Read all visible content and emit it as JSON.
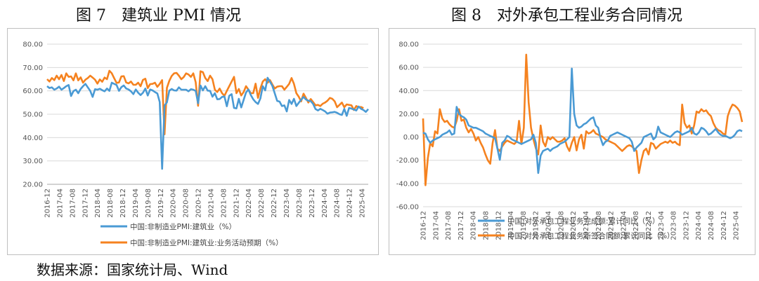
{
  "figure1_title": "图 7　建筑业 PMI 情况",
  "figure2_title": "图 8　对外承包工程业务合同情况",
  "source_note": "数据来源：国家统计局、Wind",
  "colors": {
    "blue": "#4a9ad4",
    "orange": "#f5821f",
    "grid": "#d9d9d9",
    "axis": "#a6a6a6"
  },
  "chart_data": [
    {
      "type": "line",
      "ylim": [
        20,
        80
      ],
      "y_ticks": [
        "20.00",
        "30.00",
        "40.00",
        "50.00",
        "60.00",
        "70.00",
        "80.00"
      ],
      "x_start": "2016-12",
      "x_tick_labels": [
        "2016-12",
        "2017-04",
        "2017-08",
        "2017-12",
        "2018-04",
        "2018-08",
        "2018-12",
        "2019-04",
        "2019-08",
        "2019-12",
        "2020-04",
        "2020-08",
        "2020-12",
        "2021-04",
        "2021-08",
        "2021-12",
        "2022-04",
        "2022-08",
        "2022-12",
        "2023-04",
        "2023-08",
        "2023-12",
        "2024-04",
        "2024-08",
        "2024-12",
        "2025-04"
      ],
      "x_end": "2025-06",
      "series": [
        {
          "name": "中国:非制造业PMI:建筑业（%）",
          "color": "#4a9ad4",
          "values": [
            62.0,
            61.2,
            61.5,
            60.5,
            61.0,
            61.8,
            60.5,
            61.2,
            62.0,
            62.5,
            57.8,
            59.9,
            60.5,
            59.0,
            60.8,
            62.0,
            63.0,
            61.5,
            60.0,
            57.4,
            60.7,
            60.5,
            60.9,
            60.3,
            59.8,
            61.0,
            60.0,
            63.5,
            63.0,
            62.5,
            60.0,
            61.6,
            62.3,
            61.0,
            60.6,
            59.8,
            58.6,
            60.6,
            59.2,
            58.2,
            59.2,
            61.0,
            58.0,
            60.6,
            60.2,
            59.5,
            58.9,
            55.2,
            26.6,
            53.7,
            55.1,
            60.1,
            60.8,
            60.2,
            60.1,
            61.5,
            60.5,
            60.5,
            60.5,
            59.8,
            60.7,
            60.5,
            60.0,
            54.7,
            62.3,
            60.2,
            62.0,
            60.1,
            60.0,
            57.5,
            59.0,
            56.4,
            56.5,
            57.4,
            57.6,
            53.4,
            57.9,
            58.6,
            52.7,
            52.5,
            56.6,
            52.9,
            56.1,
            59.3,
            60.6,
            58.2,
            56.4,
            55.2,
            54.4,
            56.8,
            62.0,
            60.2,
            65.6,
            63.9,
            62.1,
            58.9,
            55.7,
            55.4,
            53.5,
            53.8,
            51.2,
            56.1,
            54.4,
            56.6,
            53.5,
            54.9,
            56.2,
            57.4,
            56.3,
            55.8,
            55.6,
            54.4,
            52.2,
            51.6,
            52.3,
            51.8,
            51.2,
            50.2,
            50.7,
            50.8,
            51.0,
            50.6,
            50.0,
            49.7,
            52.3,
            49.3,
            52.7,
            52.4,
            52.0,
            51.6,
            53.3,
            52.3,
            51.8,
            51.0,
            52.2
          ]
        },
        {
          "name": "中国:非制造业PMI:建筑业:业务活动预期（%）",
          "color": "#f5821f",
          "values": [
            65.0,
            64.0,
            65.5,
            64.6,
            66.5,
            65.0,
            66.8,
            64.2,
            67.5,
            66.0,
            66.2,
            64.5,
            67.5,
            64.5,
            65.8,
            63.5,
            64.8,
            65.5,
            66.5,
            65.7,
            64.8,
            63.1,
            64.9,
            63.9,
            65.7,
            65.0,
            68.6,
            67.5,
            65.4,
            63.4,
            63.6,
            66.2,
            66.3,
            63.6,
            63.2,
            64.0,
            62.6,
            62.6,
            63.5,
            62.0,
            64.7,
            65.2,
            61.2,
            62.9,
            63.0,
            63.5,
            61.7,
            63.0,
            64.6,
            41.4,
            61.3,
            64.3,
            66.4,
            67.5,
            67.7,
            66.5,
            65.0,
            65.9,
            67.5,
            67.0,
            66.0,
            67.5,
            63.7,
            53.6,
            68.4,
            68.0,
            65.5,
            64.2,
            66.5,
            65.0,
            60.5,
            59.5,
            61.0,
            59.0,
            57.9,
            60.0,
            62.0,
            64.0,
            66.0,
            59.0,
            60.8,
            58.0,
            59.5,
            62.0,
            60.5,
            59.0,
            59.0,
            63.1,
            57.0,
            61.0,
            64.0,
            65.0,
            63.5,
            64.6,
            62.7,
            61.0,
            61.8,
            62.0,
            62.0,
            60.5,
            61.7,
            63.0,
            65.5,
            63.0,
            59.0,
            57.5,
            55.5,
            58.8,
            57.0,
            55.0,
            56.5,
            55.2,
            53.8,
            54.0,
            53.5,
            54.5,
            55.0,
            55.8,
            57.0,
            56.6,
            55.5,
            53.0,
            54.0,
            55.0,
            53.0,
            54.2,
            54.0,
            53.8,
            51.8,
            53.5,
            53.0,
            53.1,
            52.6
          ]
        }
      ]
    },
    {
      "type": "line",
      "ylim": [
        -60,
        80
      ],
      "y_ticks": [
        "-60.00",
        "-40.00",
        "-20.00",
        "0.00",
        "20.00",
        "40.00",
        "60.00",
        "80.00"
      ],
      "x_start": "2016-12",
      "x_tick_labels": [
        "2016-12",
        "2017-04",
        "2017-08",
        "2017-12",
        "2018-04",
        "2018-08",
        "2018-12",
        "2019-04",
        "2019-08",
        "2019-12",
        "2020-04",
        "2020-08",
        "2020-12",
        "2021-04",
        "2021-08",
        "2021-12",
        "2022-04",
        "2022-08",
        "2022-12",
        "2023-04",
        "2023-08",
        "2023-12",
        "2024-04",
        "2024-08",
        "2024-12",
        "2025-04"
      ],
      "x_end": "2025-06",
      "series": [
        {
          "name": "中国:对外承包工程业务完成额:累计同比（%）",
          "color": "#4a9ad4",
          "values": [
            3.7,
            3.0,
            -2.0,
            -5.0,
            -3.0,
            -2.0,
            -1.0,
            0.0,
            2.0,
            3.0,
            4.0,
            5.8,
            2.0,
            3.0,
            26.0,
            20.0,
            18.0,
            17.0,
            15.0,
            10.0,
            9.0,
            8.0,
            8.0,
            7.0,
            6.0,
            5.0,
            3.0,
            2.0,
            1.0,
            0.0,
            -1.0,
            -10.0,
            -19.6,
            -5.0,
            -3.0,
            1.0,
            0.0,
            -2.0,
            -3.0,
            -4.0,
            -5.0,
            -6.0,
            -5.0,
            -4.0,
            -3.0,
            -2.0,
            2.0,
            -5.0,
            -31.0,
            -16.0,
            -12.0,
            -11.0,
            -10.0,
            -12.0,
            -10.0,
            -9.0,
            -8.0,
            -6.0,
            -5.0,
            -4.0,
            -2.0,
            0.0,
            59.0,
            20.0,
            10.0,
            8.0,
            9.0,
            11.0,
            12.0,
            14.0,
            16.0,
            17.0,
            10.0,
            8.0,
            -1.0,
            -7.0,
            -4.0,
            -3.0,
            1.0,
            2.0,
            3.0,
            4.0,
            3.0,
            2.0,
            1.0,
            0.0,
            -1.0,
            -4.0,
            -12.0,
            -9.0,
            -7.0,
            -5.0,
            0.0,
            1.0,
            2.0,
            3.0,
            -2.0,
            0.0,
            9.0,
            4.0,
            3.0,
            2.0,
            1.0,
            0.0,
            2.0,
            4.0,
            5.0,
            4.0,
            2.0,
            3.0,
            4.0,
            5.0,
            8.0,
            3.0,
            2.0,
            4.0,
            8.0,
            7.0,
            5.0,
            2.0,
            3.0,
            5.0,
            7.0,
            4.0,
            2.0,
            1.0,
            1.0,
            0.0,
            -1.0,
            0.0,
            2.0,
            5.0,
            6.0,
            5.0
          ]
        },
        {
          "name": "中国:对外承包工程业务新签合同额:累计同比（%）",
          "color": "#f5821f",
          "values": [
            16.0,
            -41.5,
            -18.0,
            -5.0,
            -8.0,
            5.0,
            3.0,
            24.0,
            16.0,
            13.0,
            14.0,
            11.0,
            9.0,
            8.0,
            14.0,
            24.0,
            14.0,
            15.0,
            8.0,
            4.0,
            7.0,
            3.0,
            -3.0,
            0.0,
            -5.0,
            -9.0,
            -15.0,
            -20.0,
            -23.0,
            -5.0,
            6.0,
            -10.0,
            -12.0,
            -8.0,
            -5.0,
            -3.0,
            -4.0,
            -5.0,
            -6.0,
            -4.0,
            14.0,
            -6.0,
            8.0,
            71.0,
            30.0,
            8.0,
            -2.0,
            -9.6,
            -15.0,
            10.0,
            -4.0,
            -8.0,
            0.0,
            -2.0,
            0.0,
            -2.0,
            -4.0,
            -4.0,
            -3.0,
            -1.0,
            -8.0,
            -12.0,
            -5.0,
            0.0,
            -11.5,
            -2.0,
            2.0,
            -10.0,
            5.0,
            3.0,
            4.0,
            6.0,
            3.0,
            2.0,
            1.0,
            0.0,
            -2.0,
            -3.0,
            -4.0,
            -5.0,
            -6.0,
            -8.0,
            -10.0,
            -12.0,
            -10.0,
            -8.0,
            -7.0,
            -8.0,
            -10.0,
            -12.0,
            -31.0,
            -20.0,
            -12.0,
            -10.0,
            -15.0,
            -5.0,
            -6.0,
            -10.0,
            -8.0,
            -6.0,
            -5.0,
            -4.0,
            -5.0,
            -3.0,
            -5.0,
            -4.0,
            -6.0,
            -7.0,
            28.0,
            12.0,
            8.0,
            10.0,
            3.0,
            10.0,
            22.0,
            21.0,
            24.0,
            22.0,
            23.0,
            20.0,
            18.0,
            12.0,
            8.0,
            6.0,
            5.0,
            3.0,
            2.0,
            18.0,
            24.0,
            28.0,
            27.0,
            25.0,
            22.0,
            13.0
          ]
        }
      ]
    }
  ]
}
